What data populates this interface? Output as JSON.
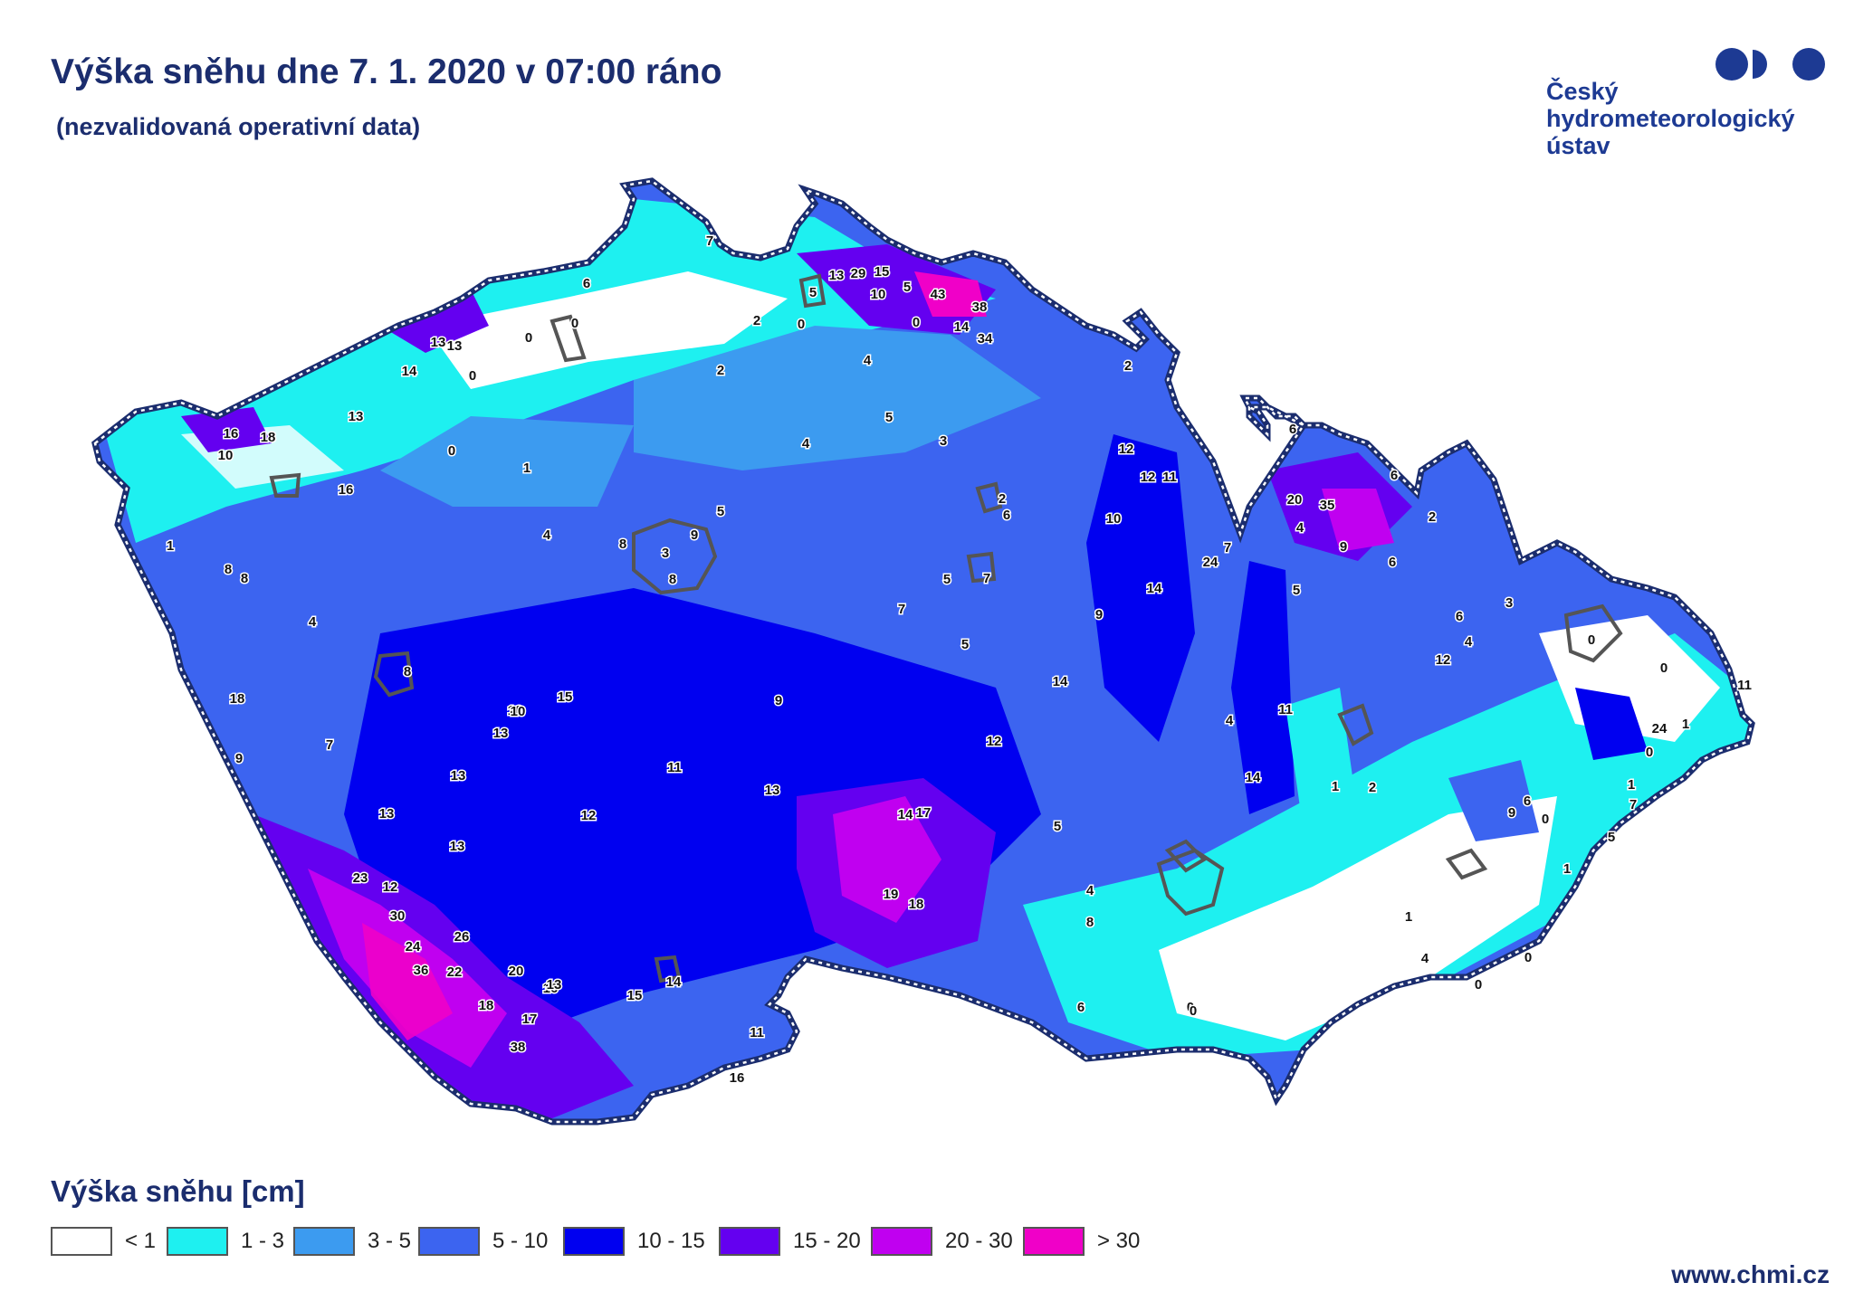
{
  "header": {
    "title": "Výška sněhu dne 7. 1. 2020 v 07:00 ráno",
    "subtitle": "(nezvalidovaná operativní data)"
  },
  "logo": {
    "line1": "Český",
    "line2": "hydrometeorologický",
    "line3": "ústav",
    "color": "#1d3a93"
  },
  "legend": {
    "title": "Výška sněhu [cm]",
    "items": [
      {
        "label": "< 1",
        "color": "#ffffff"
      },
      {
        "label": "1 - 3",
        "color": "#1ef0f0"
      },
      {
        "label": "3 - 5",
        "color": "#3c9bf0"
      },
      {
        "label": "5 - 10",
        "color": "#3c64f0"
      },
      {
        "label": "10 - 15",
        "color": "#0000f0"
      },
      {
        "label": "15 - 20",
        "color": "#6400f0"
      },
      {
        "label": "20 - 30",
        "color": "#c000f0"
      },
      {
        "label": "> 30",
        "color": "#f000c8"
      }
    ]
  },
  "footer": {
    "url": "www.chmi.cz"
  },
  "stations": [
    {
      "v": "7"
    },
    {
      "v": "6"
    },
    {
      "v": "13"
    },
    {
      "v": "29"
    },
    {
      "v": "15"
    },
    {
      "v": "5"
    },
    {
      "v": "10"
    },
    {
      "v": "5"
    },
    {
      "v": "43"
    },
    {
      "v": "38"
    },
    {
      "v": "0"
    },
    {
      "v": "14"
    },
    {
      "v": "34"
    },
    {
      "v": "0"
    },
    {
      "v": "2"
    },
    {
      "v": "0"
    },
    {
      "v": "13"
    },
    {
      "v": "13"
    },
    {
      "v": "0"
    },
    {
      "v": "14"
    },
    {
      "v": "0"
    },
    {
      "v": "2"
    },
    {
      "v": "4"
    },
    {
      "v": "2"
    },
    {
      "v": "16"
    },
    {
      "v": "18"
    },
    {
      "v": "13"
    },
    {
      "v": "10"
    },
    {
      "v": "0"
    },
    {
      "v": "1"
    },
    {
      "v": "5"
    },
    {
      "v": "4"
    },
    {
      "v": "3"
    },
    {
      "v": "12"
    },
    {
      "v": "12"
    },
    {
      "v": "11"
    },
    {
      "v": "16"
    },
    {
      "v": "1"
    },
    {
      "v": "4"
    },
    {
      "v": "5"
    },
    {
      "v": "8"
    },
    {
      "v": "9"
    },
    {
      "v": "3"
    },
    {
      "v": "8"
    },
    {
      "v": "2"
    },
    {
      "v": "6"
    },
    {
      "v": "10"
    },
    {
      "v": "8"
    },
    {
      "v": "8"
    },
    {
      "v": "5"
    },
    {
      "v": "7"
    },
    {
      "v": "24"
    },
    {
      "v": "7"
    },
    {
      "v": "14"
    },
    {
      "v": "4"
    },
    {
      "v": "7"
    },
    {
      "v": "9"
    },
    {
      "v": "8"
    },
    {
      "v": "5"
    },
    {
      "v": "15"
    },
    {
      "v": "9"
    },
    {
      "v": "10"
    },
    {
      "v": "14"
    },
    {
      "v": "18"
    },
    {
      "v": "10"
    },
    {
      "v": "13"
    },
    {
      "v": "7"
    },
    {
      "v": "11"
    },
    {
      "v": "12"
    },
    {
      "v": "9"
    },
    {
      "v": "4"
    },
    {
      "v": "11"
    },
    {
      "v": "13"
    },
    {
      "v": "13"
    },
    {
      "v": "14"
    },
    {
      "v": "12"
    },
    {
      "v": "14"
    },
    {
      "v": "17"
    },
    {
      "v": "5"
    },
    {
      "v": "13"
    },
    {
      "v": "13"
    },
    {
      "v": "23"
    },
    {
      "v": "12"
    },
    {
      "v": "30"
    },
    {
      "v": "26"
    },
    {
      "v": "24"
    },
    {
      "v": "36"
    },
    {
      "v": "22"
    },
    {
      "v": "20"
    },
    {
      "v": "18"
    },
    {
      "v": "17"
    },
    {
      "v": "16"
    },
    {
      "v": "13"
    },
    {
      "v": "15"
    },
    {
      "v": "14"
    },
    {
      "v": "19"
    },
    {
      "v": "18"
    },
    {
      "v": "4"
    },
    {
      "v": "8"
    },
    {
      "v": "38"
    },
    {
      "v": "11"
    },
    {
      "v": "16"
    },
    {
      "v": "6"
    },
    {
      "v": "0"
    },
    {
      "v": "6"
    },
    {
      "v": "20"
    },
    {
      "v": "35"
    },
    {
      "v": "6"
    },
    {
      "v": "2"
    },
    {
      "v": "4"
    },
    {
      "v": "9"
    },
    {
      "v": "6"
    },
    {
      "v": "5"
    },
    {
      "v": "3"
    },
    {
      "v": "6"
    },
    {
      "v": "4"
    },
    {
      "v": "12"
    },
    {
      "v": "0"
    },
    {
      "v": "0"
    },
    {
      "v": "11"
    },
    {
      "v": "24"
    },
    {
      "v": "1"
    },
    {
      "v": "0"
    },
    {
      "v": "2"
    },
    {
      "v": "1"
    },
    {
      "v": "9"
    },
    {
      "v": "6"
    },
    {
      "v": "1"
    },
    {
      "v": "7"
    },
    {
      "v": "0"
    },
    {
      "v": "5"
    },
    {
      "v": "1"
    },
    {
      "v": "1"
    },
    {
      "v": "0"
    },
    {
      "v": "4"
    },
    {
      "v": "0"
    },
    {
      "v": "0"
    }
  ]
}
